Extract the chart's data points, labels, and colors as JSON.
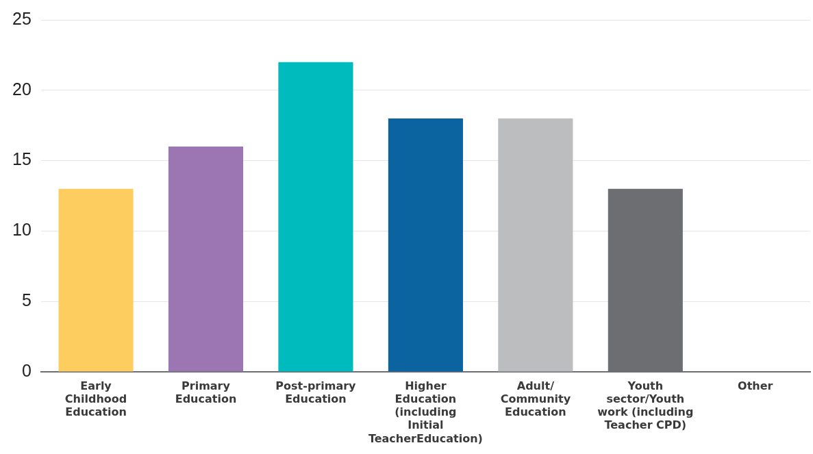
{
  "chart_data": {
    "type": "bar",
    "categories": [
      "Early Childhood Education",
      "Primary Education",
      "Post-primary Education",
      "Higher Education (including Initial TeacherEducation)",
      "Adult/ Community Education",
      "Youth sector/Youth work (including Teacher CPD)",
      "Other"
    ],
    "values": [
      13,
      16,
      22,
      18,
      18,
      13,
      0
    ],
    "colors": [
      "#fdcd60",
      "#9b76b2",
      "#00bbbe",
      "#0b64a0",
      "#bcbdbf",
      "#6d6e72",
      "#6d6e72"
    ],
    "ylim": [
      0,
      25
    ],
    "yticks": [
      0,
      5,
      10,
      15,
      20,
      25
    ],
    "grid": "y",
    "legend": false
  }
}
